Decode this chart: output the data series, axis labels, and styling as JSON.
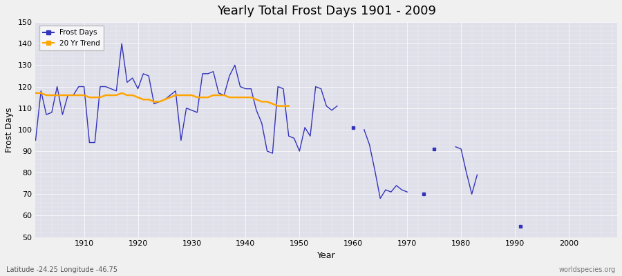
{
  "title": "Yearly Total Frost Days 1901 - 2009",
  "xlabel": "Year",
  "ylabel": "Frost Days",
  "subtitle": "Latitude -24.25 Longitude -46.75",
  "watermark": "worldspecies.org",
  "xlim": [
    1901,
    2009
  ],
  "ylim": [
    50,
    150
  ],
  "yticks": [
    50,
    60,
    70,
    80,
    90,
    100,
    110,
    120,
    130,
    140,
    150
  ],
  "xticks": [
    1910,
    1920,
    1930,
    1940,
    1950,
    1960,
    1970,
    1980,
    1990,
    2000
  ],
  "line_color": "#3333bb",
  "trend_color": "#FFA500",
  "bg_color": "#f0f0f0",
  "plot_bg": "#e0e0ea",
  "frost_days_years": [
    1901,
    1902,
    1903,
    1904,
    1905,
    1906,
    1907,
    1908,
    1909,
    1910,
    1911,
    1912,
    1913,
    1914,
    1915,
    1916,
    1917,
    1918,
    1919,
    1920,
    1921,
    1922,
    1923,
    1924,
    1925,
    1926,
    1927,
    1928,
    1929,
    1930,
    1931,
    1932,
    1933,
    1934,
    1935,
    1936,
    1937,
    1938,
    1939,
    1940,
    1941,
    1942,
    1943,
    1944,
    1945,
    1946,
    1947,
    1948,
    1949,
    1950,
    1951,
    1952,
    1953,
    1954,
    1955,
    1956,
    1957,
    1960,
    1962,
    1963,
    1964,
    1965,
    1966,
    1967,
    1968,
    1969,
    1970,
    1973,
    1975,
    1979,
    1980,
    1981,
    1982,
    1983,
    1991
  ],
  "frost_days_vals": [
    95,
    118,
    107,
    108,
    120,
    107,
    116,
    116,
    120,
    120,
    94,
    94,
    120,
    120,
    119,
    118,
    140,
    122,
    124,
    119,
    126,
    125,
    112,
    113,
    114,
    116,
    118,
    95,
    110,
    109,
    108,
    126,
    126,
    127,
    117,
    116,
    125,
    130,
    120,
    119,
    119,
    109,
    103,
    90,
    89,
    120,
    119,
    97,
    96,
    90,
    101,
    97,
    120,
    119,
    111,
    109,
    111,
    101,
    100,
    93,
    81,
    68,
    72,
    71,
    74,
    72,
    71,
    70,
    91,
    92,
    91,
    80,
    70,
    79,
    55
  ],
  "trend_years": [
    1901,
    1902,
    1903,
    1904,
    1905,
    1906,
    1907,
    1908,
    1909,
    1910,
    1911,
    1912,
    1913,
    1914,
    1915,
    1916,
    1917,
    1918,
    1919,
    1920,
    1921,
    1922,
    1923,
    1924,
    1925,
    1926,
    1927,
    1928,
    1929,
    1930,
    1931,
    1932,
    1933,
    1934,
    1935,
    1936,
    1937,
    1938,
    1939,
    1940,
    1941,
    1942,
    1943,
    1944,
    1945,
    1946,
    1947,
    1948
  ],
  "trend_vals": [
    117,
    117,
    116,
    116,
    116,
    116,
    116,
    116,
    116,
    116,
    115,
    115,
    115,
    116,
    116,
    116,
    117,
    116,
    116,
    115,
    114,
    114,
    113,
    113,
    114,
    115,
    116,
    116,
    116,
    116,
    115,
    115,
    115,
    116,
    116,
    116,
    115,
    115,
    115,
    115,
    115,
    114,
    113,
    113,
    112,
    111,
    111,
    111
  ]
}
